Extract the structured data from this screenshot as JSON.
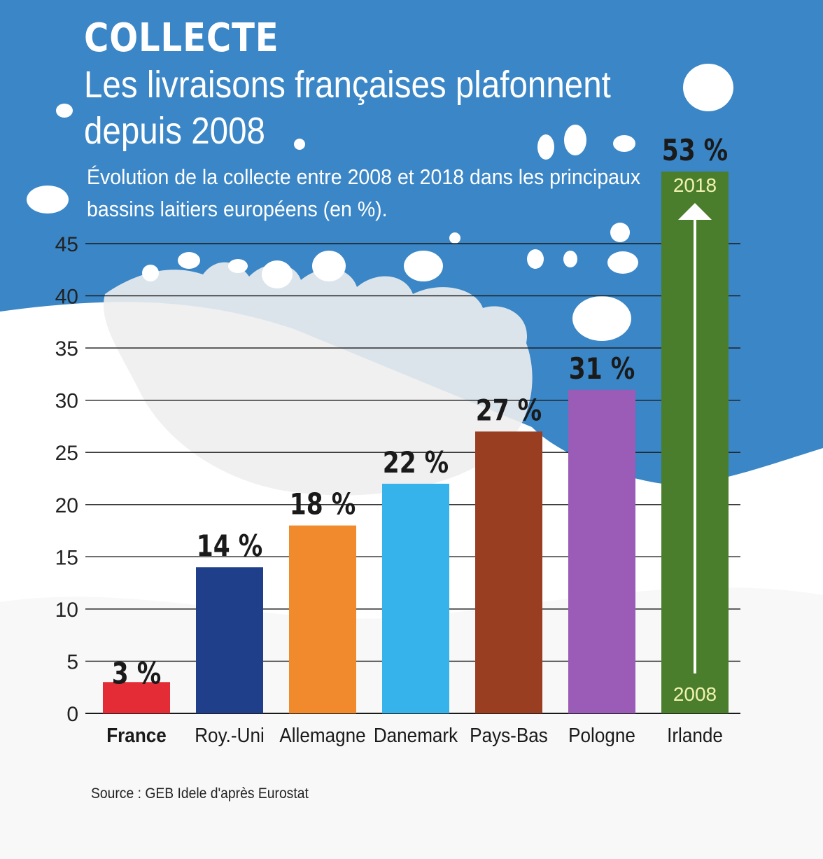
{
  "header": {
    "kicker": "COLLECTE",
    "headline": "Les livraisons françaises plafonnent depuis 2008",
    "subtitle": "Évolution de la collecte entre 2008 et 2018 dans les principaux bassins laitiers européens (en %)."
  },
  "source": "Source : GEB Idele d'après Eurostat",
  "colors": {
    "background_blue": "#3a86c6",
    "France": "#e32c35",
    "Roy.-Uni": "#1f3f8a",
    "Allemagne": "#f08a2c",
    "Danemark": "#36b3ea",
    "Pays-Bas": "#9a3e22",
    "Pologne": "#9a5cb6",
    "Irlande": "#4a7e2c"
  },
  "chart_data": {
    "type": "bar",
    "categories": [
      "France",
      "Roy.-Uni",
      "Allemagne",
      "Danemark",
      "Pays-Bas",
      "Pologne",
      "Irlande"
    ],
    "values": [
      3,
      14,
      18,
      22,
      27,
      31,
      53
    ],
    "value_labels": [
      "3 %",
      "14 %",
      "18 %",
      "22 %",
      "27 %",
      "31 %",
      "53 %"
    ],
    "ylim": [
      0,
      45
    ],
    "yticks": [
      0,
      5,
      10,
      15,
      20,
      25,
      30,
      35,
      40,
      45
    ],
    "grid": true,
    "highlight_category": "France",
    "arrow_annotation": {
      "category": "Irlande",
      "start_label": "2008",
      "end_label": "2018"
    }
  }
}
